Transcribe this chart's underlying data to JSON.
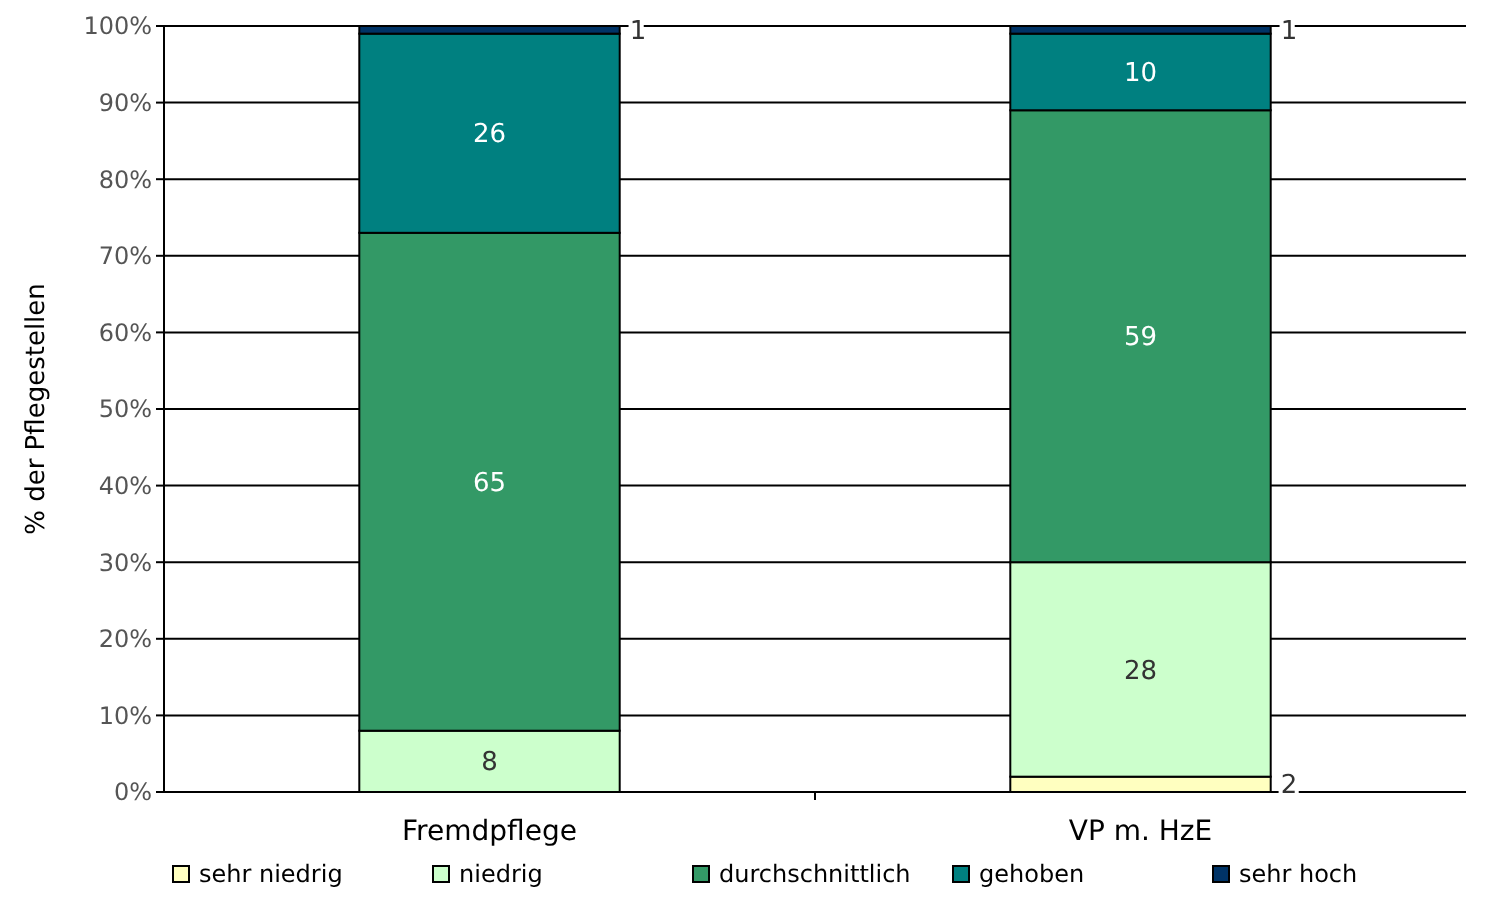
{
  "chart_data": {
    "type": "bar",
    "stacked": true,
    "ylabel": "% der Pflegestellen",
    "categories": [
      "Fremdpflege",
      "VP m. HzE"
    ],
    "series": [
      {
        "name": "sehr niedrig",
        "color": "#ffffc0",
        "values": [
          0,
          2
        ],
        "value_labels": [
          null,
          "2"
        ]
      },
      {
        "name": "niedrig",
        "color": "#ccffcc",
        "values": [
          8,
          28
        ],
        "value_labels": [
          "8",
          "28"
        ]
      },
      {
        "name": "durchschnittlich",
        "color": "#339966",
        "values": [
          65,
          59
        ],
        "value_labels": [
          "65",
          "59"
        ]
      },
      {
        "name": "gehoben",
        "color": "#008080",
        "values": [
          26,
          10
        ],
        "value_labels": [
          "26",
          "10"
        ]
      },
      {
        "name": "sehr hoch",
        "color": "#003366",
        "values": [
          1,
          1
        ],
        "value_labels": [
          "1",
          "1"
        ]
      }
    ],
    "ylim": [
      0,
      100
    ],
    "yticks": [
      {
        "value": 0,
        "label": "0%"
      },
      {
        "value": 10,
        "label": "10%"
      },
      {
        "value": 20,
        "label": "20%"
      },
      {
        "value": 30,
        "label": "30%"
      },
      {
        "value": 40,
        "label": "40%"
      },
      {
        "value": 50,
        "label": "50%"
      },
      {
        "value": 60,
        "label": "60%"
      },
      {
        "value": 70,
        "label": "70%"
      },
      {
        "value": 80,
        "label": "80%"
      },
      {
        "value": 90,
        "label": "90%"
      },
      {
        "value": 100,
        "label": "100%"
      }
    ],
    "grid": "y",
    "legend": "bottom"
  }
}
